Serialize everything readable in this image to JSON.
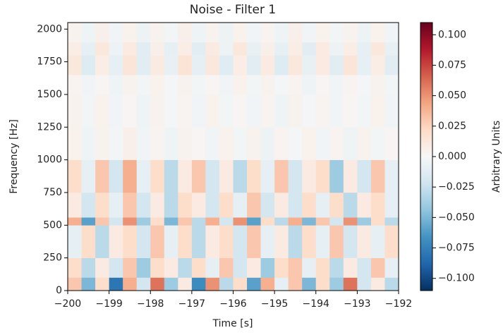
{
  "chart_data": {
    "type": "heatmap",
    "title": "Noise - Filter 1",
    "x_label": "Time [s]",
    "y_label": "Frequency [Hz]",
    "colorbar_label": "Arbitrary Units",
    "xlim": [
      -200,
      -192
    ],
    "xticks": [
      {
        "value": -200,
        "label": "−200"
      },
      {
        "value": -199,
        "label": "−199"
      },
      {
        "value": -198,
        "label": "−198"
      },
      {
        "value": -197,
        "label": "−197"
      },
      {
        "value": -196,
        "label": "−196"
      },
      {
        "value": -195,
        "label": "−195"
      },
      {
        "value": -194,
        "label": "−194"
      },
      {
        "value": -193,
        "label": "−193"
      },
      {
        "value": -192,
        "label": "−192"
      }
    ],
    "ylim": [
      0,
      2050
    ],
    "yticks": [
      0,
      250,
      500,
      750,
      1000,
      1250,
      1500,
      1750,
      2000
    ],
    "ybins": [
      0,
      100,
      250,
      500,
      560,
      750,
      1000,
      1250,
      1500,
      1650,
      1800,
      1900,
      2050
    ],
    "clim": [
      -0.11,
      0.11
    ],
    "cticks": [
      {
        "value": -0.1,
        "label": "−0.100"
      },
      {
        "value": -0.075,
        "label": "−0.075"
      },
      {
        "value": -0.05,
        "label": "−0.050"
      },
      {
        "value": -0.025,
        "label": "−0.025"
      },
      {
        "value": 0,
        "label": "0.000"
      },
      {
        "value": 0.025,
        "label": "0.025"
      },
      {
        "value": 0.05,
        "label": "0.050"
      },
      {
        "value": 0.075,
        "label": "0.075"
      },
      {
        "value": 0.1,
        "label": "0.100"
      }
    ],
    "colormap": [
      "#053061",
      "#2166ac",
      "#4393c3",
      "#92c5de",
      "#d1e5f0",
      "#f7f7f7",
      "#fddbc7",
      "#f4a582",
      "#d6604d",
      "#b2182b",
      "#67001f"
    ],
    "z": [
      [
        0.03,
        -0.05,
        0.02,
        -0.08,
        0.04,
        -0.02,
        0.06,
        -0.04,
        0.01,
        -0.07,
        0.05,
        -0.03,
        0.02,
        -0.06,
        0.04,
        -0.01,
        0.03,
        -0.05,
        0.02,
        -0.04,
        0.06,
        -0.02,
        0.01,
        -0.03
      ],
      [
        0.02,
        -0.03,
        0.01,
        -0.02,
        0.03,
        -0.04,
        0.02,
        0.01,
        -0.03,
        0.02,
        -0.01,
        0.03,
        -0.02,
        0.01,
        -0.04,
        0.02,
        0.03,
        -0.01,
        0.02,
        -0.03,
        0.01,
        -0.02,
        0.03,
        -0.01
      ],
      [
        -0.01,
        0.02,
        -0.03,
        0.01,
        0.02,
        -0.02,
        0.03,
        -0.01,
        0.02,
        -0.03,
        0.01,
        0.02,
        -0.02,
        0.03,
        -0.01,
        0.01,
        -0.03,
        0.02,
        -0.01,
        0.03,
        -0.02,
        0.01,
        -0.01,
        0.02
      ],
      [
        0.04,
        -0.06,
        0.03,
        -0.02,
        0.05,
        -0.04,
        0.02,
        -0.05,
        0.03,
        -0.03,
        0.04,
        -0.02,
        0.05,
        -0.06,
        0.02,
        -0.03,
        0.04,
        -0.05,
        0.03,
        -0.02,
        0.05,
        -0.04,
        0.02,
        -0.03
      ],
      [
        0.01,
        -0.02,
        0.02,
        -0.01,
        0.03,
        -0.02,
        0.01,
        -0.03,
        0.02,
        0.01,
        -0.02,
        0.02,
        -0.01,
        0.03,
        -0.02,
        0.01,
        -0.02,
        0.02,
        -0.01,
        0.02,
        -0.03,
        0.01,
        0.02,
        -0.01
      ],
      [
        0.02,
        -0.01,
        0.03,
        -0.02,
        0.04,
        -0.01,
        0.02,
        -0.03,
        0.01,
        0.03,
        -0.02,
        0.01,
        -0.03,
        0.02,
        -0.01,
        0.03,
        -0.02,
        0.01,
        0.02,
        -0.04,
        0.01,
        -0.02,
        0.03,
        -0.01
      ],
      [
        0.005,
        -0.005,
        0.004,
        -0.003,
        0.006,
        -0.004,
        0.003,
        -0.005,
        0.004,
        0.002,
        -0.004,
        0.005,
        -0.003,
        0.004,
        -0.006,
        0.003,
        -0.002,
        0.005,
        -0.004,
        0.003,
        -0.005,
        0.004,
        -0.003,
        0.002
      ],
      [
        0.004,
        -0.003,
        0.005,
        -0.004,
        0.002,
        -0.005,
        0.004,
        -0.002,
        0.003,
        -0.004,
        0.005,
        -0.003,
        0.002,
        -0.004,
        0.003,
        -0.005,
        0.004,
        -0.002,
        0.003,
        -0.004,
        0.002,
        -0.003,
        0.005,
        -0.004
      ],
      [
        0.003,
        -0.004,
        0.002,
        -0.005,
        0.004,
        -0.003,
        0.005,
        -0.002,
        0.004,
        -0.003,
        0.002,
        -0.004,
        0.005,
        -0.003,
        0.004,
        -0.002,
        0.003,
        -0.005,
        0.002,
        -0.004,
        0.003,
        -0.002,
        0.004,
        -0.003
      ],
      [
        0.012,
        -0.015,
        0.008,
        -0.01,
        0.014,
        -0.012,
        0.01,
        -0.008,
        0.015,
        -0.01,
        0.012,
        -0.014,
        0.008,
        -0.012,
        0.01,
        -0.015,
        0.012,
        -0.008,
        0.01,
        -0.012,
        0.014,
        -0.01,
        0.008,
        -0.012
      ],
      [
        0.008,
        -0.01,
        0.012,
        -0.006,
        0.01,
        -0.012,
        0.006,
        -0.01,
        0.008,
        -0.012,
        0.01,
        -0.006,
        0.012,
        -0.008,
        0.006,
        -0.01,
        0.008,
        -0.012,
        0.01,
        -0.006,
        0.008,
        -0.01,
        0.012,
        -0.008
      ],
      [
        0.004,
        -0.005,
        0.006,
        -0.004,
        0.005,
        -0.006,
        0.004,
        -0.003,
        0.006,
        -0.005,
        0.004,
        -0.006,
        0.005,
        -0.004,
        0.003,
        -0.005,
        0.006,
        -0.004,
        0.005,
        -0.003,
        0.004,
        -0.006,
        0.005,
        -0.004
      ]
    ]
  }
}
